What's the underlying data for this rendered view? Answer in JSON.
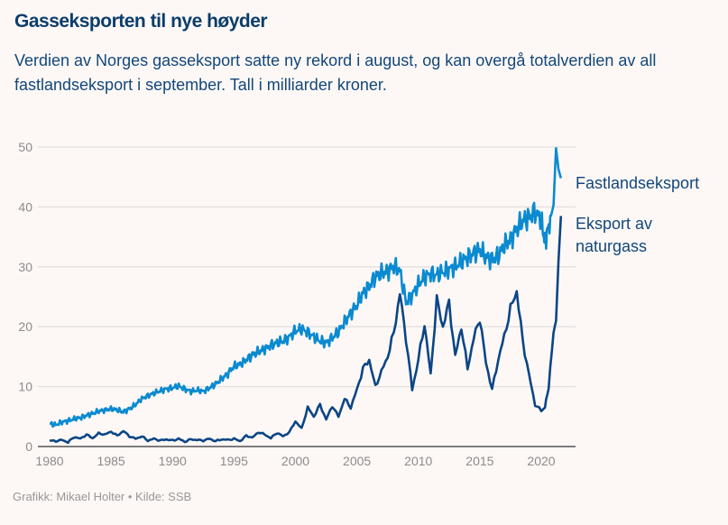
{
  "header": {
    "title": "Gasseksporten til nye høyder",
    "subtitle": "Verdien av Norges gasseksport satte ny rekord i august, og kan overgå totalverdien av all fastlandseksport i september. Tall i milliarder kroner."
  },
  "footer": {
    "credit": "Grafikk: Mikael Holter • Kilde: SSB"
  },
  "chart_data": {
    "type": "line",
    "title": "Gasseksporten til nye høyder",
    "xlabel": "",
    "ylabel": "Milliarder kroner",
    "xlim": [
      1980,
      2021.7
    ],
    "ylim": [
      0,
      50
    ],
    "grid": true,
    "x_ticks": [
      "1980",
      "1985",
      "1990",
      "1995",
      "2000",
      "2005",
      "2010",
      "2015",
      "2020"
    ],
    "y_ticks": [
      "0",
      "10",
      "20",
      "30",
      "40",
      "50"
    ],
    "legend_placement": "right-end-labels",
    "colors": {
      "fastland": "#0a8ad0",
      "gas": "#0b4585",
      "grid": "#e3dfdd",
      "axis": "#333333"
    },
    "series": [
      {
        "name": "Fastlandseksport",
        "label_lines": [
          "Fastlandseksport"
        ],
        "x": [
          1980,
          1980.5,
          1981,
          1981.5,
          1982,
          1982.5,
          1983,
          1983.5,
          1984,
          1984.5,
          1985,
          1985.5,
          1986,
          1986.5,
          1987,
          1987.5,
          1988,
          1988.5,
          1989,
          1989.5,
          1990,
          1990.5,
          1991,
          1991.5,
          1992,
          1992.5,
          1993,
          1993.5,
          1994,
          1994.5,
          1995,
          1995.5,
          1996,
          1996.5,
          1997,
          1997.5,
          1998,
          1998.5,
          1999,
          1999.5,
          2000,
          2000.5,
          2001,
          2001.5,
          2002,
          2002.5,
          2003,
          2003.5,
          2004,
          2004.5,
          2005,
          2005.5,
          2006,
          2006.5,
          2007,
          2007.5,
          2008,
          2008.5,
          2009,
          2009.5,
          2010,
          2010.5,
          2011,
          2011.5,
          2012,
          2012.5,
          2013,
          2013.5,
          2014,
          2014.5,
          2015,
          2015.5,
          2016,
          2016.5,
          2017,
          2017.5,
          2018,
          2018.5,
          2019,
          2019.5,
          2020,
          2020.3,
          2020.6,
          2021,
          2021.2,
          2021.4,
          2021.6
        ],
        "values": [
          3.8,
          3.6,
          4.1,
          4.3,
          4.6,
          4.8,
          5.2,
          5.5,
          5.9,
          6.1,
          6.3,
          6.1,
          5.8,
          6.3,
          7.0,
          8.0,
          8.5,
          8.9,
          9.3,
          9.6,
          9.8,
          10.1,
          9.6,
          9.2,
          9.4,
          9.2,
          9.8,
          10.4,
          11.3,
          12.2,
          13.4,
          13.7,
          14.5,
          15.3,
          15.8,
          16.3,
          16.9,
          17.3,
          17.6,
          18.3,
          19.3,
          19.6,
          19.1,
          18.3,
          17.6,
          17.3,
          18.2,
          19.1,
          20.8,
          22.3,
          23.6,
          25.6,
          26.8,
          28.3,
          28.9,
          29.3,
          30.1,
          29.3,
          24.1,
          25.3,
          27.0,
          28.3,
          28.9,
          28.6,
          29.1,
          29.6,
          30.1,
          30.8,
          31.6,
          32.3,
          32.8,
          31.6,
          31.3,
          31.8,
          33.6,
          34.6,
          36.3,
          37.6,
          38.3,
          39.3,
          37.6,
          34.1,
          36.8,
          40.3,
          49.8,
          46.3,
          44.8
        ]
      },
      {
        "name": "Eksport av naturgass",
        "label_lines": [
          "Eksport av",
          "naturgass"
        ],
        "x": [
          1980,
          1980.5,
          1981,
          1981.5,
          1982,
          1982.5,
          1983,
          1983.5,
          1984,
          1984.5,
          1985,
          1985.5,
          1986,
          1986.5,
          1987,
          1987.5,
          1988,
          1988.5,
          1989,
          1989.5,
          1990,
          1990.5,
          1991,
          1991.5,
          1992,
          1992.5,
          1993,
          1993.5,
          1994,
          1994.5,
          1995,
          1995.5,
          1996,
          1996.5,
          1997,
          1997.5,
          1998,
          1998.5,
          1999,
          1999.5,
          2000,
          2000.5,
          2001,
          2001.5,
          2002,
          2002.5,
          2003,
          2003.5,
          2004,
          2004.5,
          2005,
          2005.5,
          2006,
          2006.5,
          2007,
          2007.5,
          2008,
          2008.5,
          2009,
          2009.5,
          2010,
          2010.5,
          2011,
          2011.5,
          2012,
          2012.5,
          2013,
          2013.5,
          2014,
          2014.5,
          2015,
          2015.5,
          2016,
          2016.5,
          2017,
          2017.5,
          2018,
          2018.5,
          2019,
          2019.5,
          2020,
          2020.3,
          2020.6,
          2021,
          2021.2,
          2021.4,
          2021.6
        ],
        "values": [
          1.0,
          0.9,
          1.1,
          0.7,
          1.6,
          1.3,
          2.0,
          1.4,
          2.2,
          2.0,
          2.5,
          1.8,
          2.6,
          1.7,
          1.3,
          1.7,
          1.0,
          1.3,
          1.0,
          1.2,
          1.0,
          1.3,
          0.8,
          1.2,
          1.1,
          1.0,
          1.3,
          0.9,
          1.2,
          1.1,
          1.3,
          0.9,
          1.8,
          1.5,
          2.4,
          2.0,
          1.4,
          2.3,
          1.7,
          2.4,
          4.2,
          3.0,
          6.5,
          5.0,
          7.0,
          4.5,
          6.8,
          5.0,
          8.0,
          6.5,
          9.5,
          13.0,
          14.5,
          10.0,
          12.5,
          15.0,
          19.0,
          25.5,
          18.0,
          9.5,
          14.5,
          20.5,
          12.0,
          24.5,
          20.0,
          24.0,
          15.0,
          20.0,
          13.0,
          18.0,
          21.5,
          14.0,
          9.5,
          14.5,
          18.5,
          23.0,
          26.0,
          17.5,
          12.0,
          7.0,
          6.0,
          6.5,
          10.0,
          19.0,
          21.0,
          31.0,
          38.5
        ]
      }
    ]
  }
}
